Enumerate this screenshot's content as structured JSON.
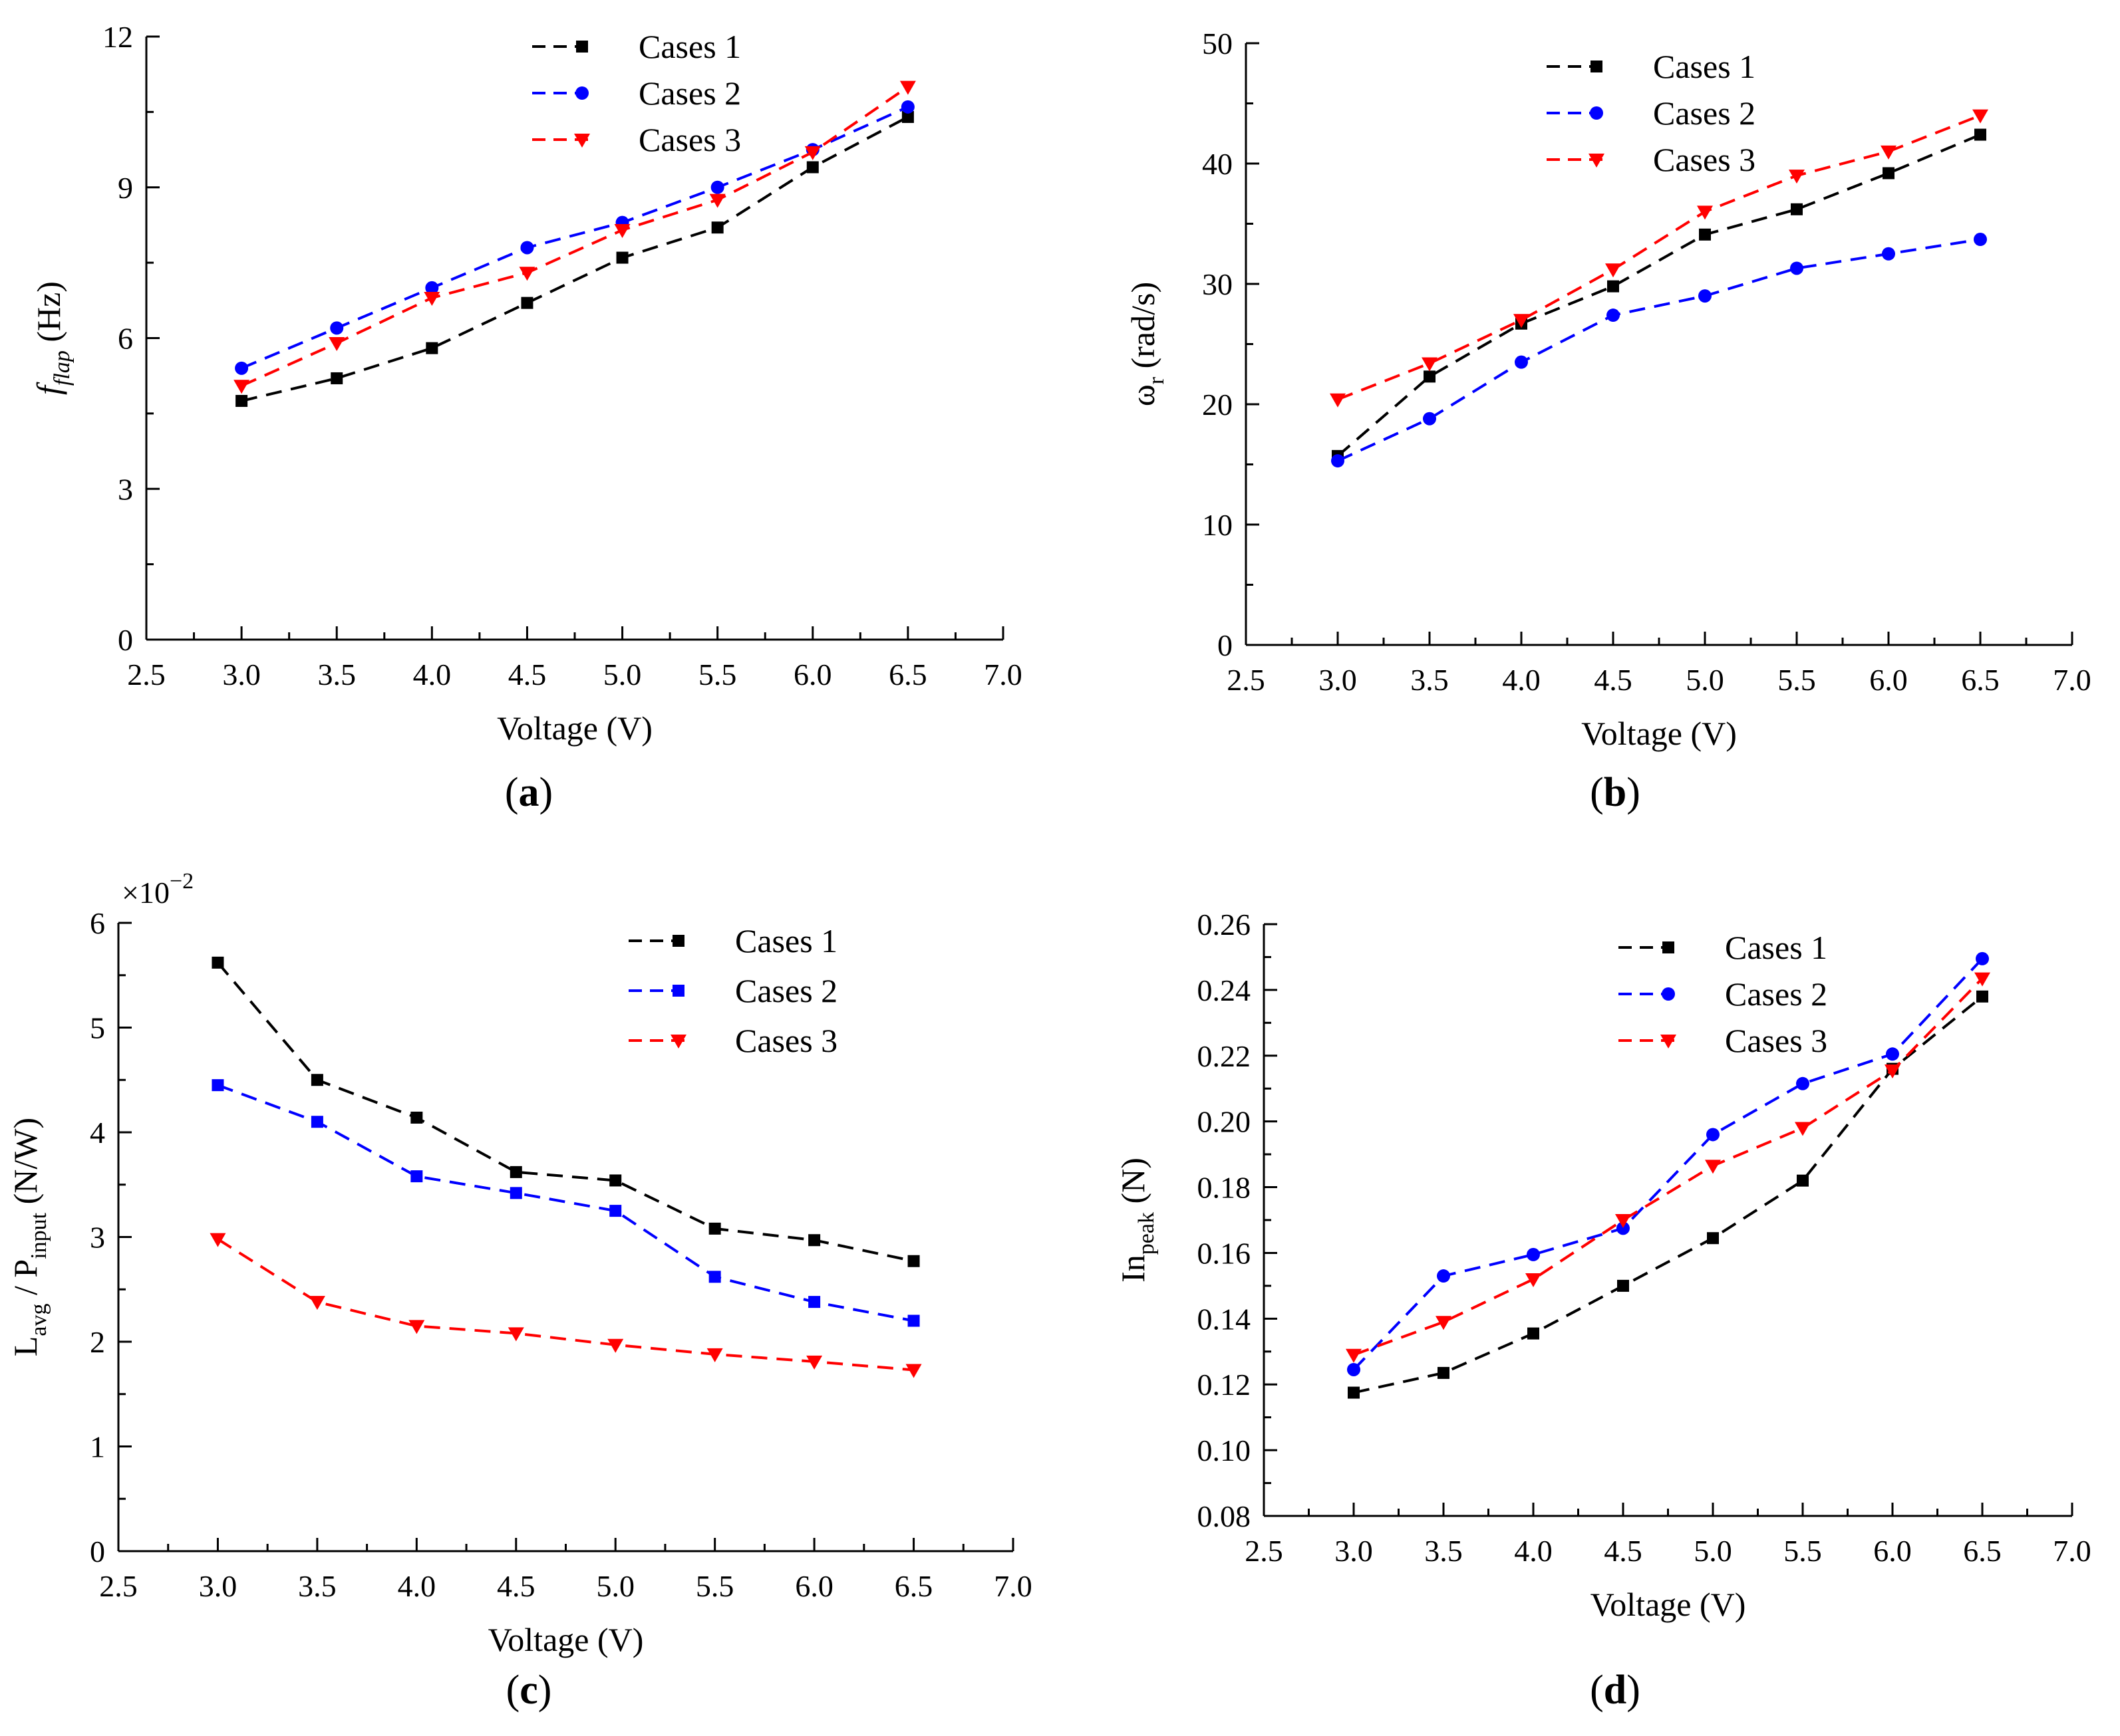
{
  "figure": {
    "panels": [
      {
        "label_open": "(",
        "label_letter": "a",
        "label_close": ")"
      },
      {
        "label_open": "(",
        "label_letter": "b",
        "label_close": ")"
      },
      {
        "label_open": "(",
        "label_letter": "c",
        "label_close": ")"
      },
      {
        "label_open": "(",
        "label_letter": "d",
        "label_close": ")"
      }
    ]
  },
  "chart_data": [
    {
      "type": "line",
      "panel": "a",
      "xlabel": "Voltage (V)",
      "ylabel_main": "f",
      "ylabel_sub": "flap",
      "ylabel_unit": " (Hz)",
      "xlim": [
        2.5,
        7.0
      ],
      "ylim": [
        0,
        12
      ],
      "xticks": [
        "2.5",
        "3.0",
        "3.5",
        "4.0",
        "4.5",
        "5.0",
        "5.5",
        "6.0",
        "6.5",
        "7.0"
      ],
      "yticks": [
        "0",
        "3",
        "6",
        "9",
        "12"
      ],
      "multiplier": "",
      "legend_position": "top-center",
      "x": [
        3.0,
        3.5,
        4.0,
        4.5,
        5.0,
        5.5,
        6.0,
        6.5
      ],
      "series": [
        {
          "name": "Cases 1",
          "color": "#000000",
          "marker": "square",
          "values": [
            4.75,
            5.2,
            5.8,
            6.7,
            7.6,
            8.2,
            9.4,
            10.4
          ]
        },
        {
          "name": "Cases 2",
          "color": "#0000ff",
          "marker": "circle",
          "values": [
            5.4,
            6.2,
            7.0,
            7.8,
            8.3,
            9.0,
            9.75,
            10.6
          ]
        },
        {
          "name": "Cases 3",
          "color": "#ff0000",
          "marker": "triangle-down",
          "values": [
            5.05,
            5.9,
            6.8,
            7.3,
            8.15,
            8.75,
            9.7,
            11.0
          ]
        }
      ]
    },
    {
      "type": "line",
      "panel": "b",
      "xlabel": "Voltage (V)",
      "ylabel_main": "ω",
      "ylabel_sub": "r",
      "ylabel_unit": " (rad/s)",
      "xlim": [
        2.5,
        7.0
      ],
      "ylim": [
        0,
        50
      ],
      "xticks": [
        "2.5",
        "3.0",
        "3.5",
        "4.0",
        "4.5",
        "5.0",
        "5.5",
        "6.0",
        "6.5",
        "7.0"
      ],
      "yticks": [
        "0",
        "10",
        "20",
        "30",
        "40",
        "50"
      ],
      "multiplier": "",
      "legend_position": "top-center",
      "x": [
        3.0,
        3.5,
        4.0,
        4.5,
        5.0,
        5.5,
        6.0,
        6.5
      ],
      "series": [
        {
          "name": "Cases 1",
          "color": "#000000",
          "marker": "square",
          "values": [
            15.7,
            22.3,
            26.7,
            29.8,
            34.1,
            36.2,
            39.2,
            42.4
          ]
        },
        {
          "name": "Cases 2",
          "color": "#0000ff",
          "marker": "circle",
          "values": [
            15.3,
            18.8,
            23.5,
            27.4,
            29.0,
            31.3,
            32.5,
            33.7
          ]
        },
        {
          "name": "Cases 3",
          "color": "#ff0000",
          "marker": "triangle-down",
          "values": [
            20.4,
            23.4,
            27.0,
            31.2,
            36.0,
            39.0,
            41.0,
            44.0
          ]
        }
      ]
    },
    {
      "type": "line",
      "panel": "c",
      "xlabel": "Voltage (V)",
      "ylabel_main": "L",
      "ylabel_sub": "avg",
      "ylabel_mid": " / P",
      "ylabel_sub2": "input",
      "ylabel_unit": " (N/W)",
      "xlim": [
        2.5,
        7.0
      ],
      "ylim": [
        0,
        6
      ],
      "xticks": [
        "2.5",
        "3.0",
        "3.5",
        "4.0",
        "4.5",
        "5.0",
        "5.5",
        "6.0",
        "6.5",
        "7.0"
      ],
      "yticks": [
        "0",
        "1",
        "2",
        "3",
        "4",
        "5",
        "6"
      ],
      "multiplier": "×10",
      "multiplier_exp": "−2",
      "legend_position": "top-right",
      "x": [
        3.0,
        3.5,
        4.0,
        4.5,
        5.0,
        5.5,
        6.0,
        6.5
      ],
      "series": [
        {
          "name": "Cases 1",
          "color": "#000000",
          "marker": "square",
          "values": [
            5.62,
            4.5,
            4.14,
            3.62,
            3.54,
            3.08,
            2.97,
            2.77
          ]
        },
        {
          "name": "Cases 2",
          "color": "#0000ff",
          "marker": "square",
          "values": [
            4.45,
            4.1,
            3.58,
            3.42,
            3.25,
            2.62,
            2.38,
            2.2
          ]
        },
        {
          "name": "Cases 3",
          "color": "#ff0000",
          "marker": "triangle-down",
          "values": [
            2.98,
            2.38,
            2.15,
            2.08,
            1.97,
            1.88,
            1.81,
            1.73
          ]
        }
      ]
    },
    {
      "type": "line",
      "panel": "d",
      "xlabel": "Voltage (V)",
      "ylabel_main": "In",
      "ylabel_sub": "peak",
      "ylabel_unit": " (N)",
      "xlim": [
        2.5,
        7.0
      ],
      "ylim": [
        0.08,
        0.26
      ],
      "xticks": [
        "2.5",
        "3.0",
        "3.5",
        "4.0",
        "4.5",
        "5.0",
        "5.5",
        "6.0",
        "6.5",
        "7.0"
      ],
      "yticks": [
        "0.08",
        "0.10",
        "0.12",
        "0.14",
        "0.16",
        "0.18",
        "0.20",
        "0.22",
        "0.24",
        "0.26"
      ],
      "multiplier": "",
      "legend_position": "top-center",
      "x": [
        3.0,
        3.5,
        4.0,
        4.5,
        5.0,
        5.5,
        6.0,
        6.5
      ],
      "series": [
        {
          "name": "Cases 1",
          "color": "#000000",
          "marker": "square",
          "values": [
            0.1175,
            0.1235,
            0.1355,
            0.15,
            0.1645,
            0.182,
            0.216,
            0.238
          ]
        },
        {
          "name": "Cases 2",
          "color": "#0000ff",
          "marker": "circle",
          "values": [
            0.1245,
            0.153,
            0.1595,
            0.1675,
            0.196,
            0.2115,
            0.2205,
            0.2495
          ]
        },
        {
          "name": "Cases 3",
          "color": "#ff0000",
          "marker": "triangle-down",
          "values": [
            0.129,
            0.139,
            0.152,
            0.17,
            0.1865,
            0.198,
            0.2155,
            0.2435
          ]
        }
      ]
    }
  ]
}
